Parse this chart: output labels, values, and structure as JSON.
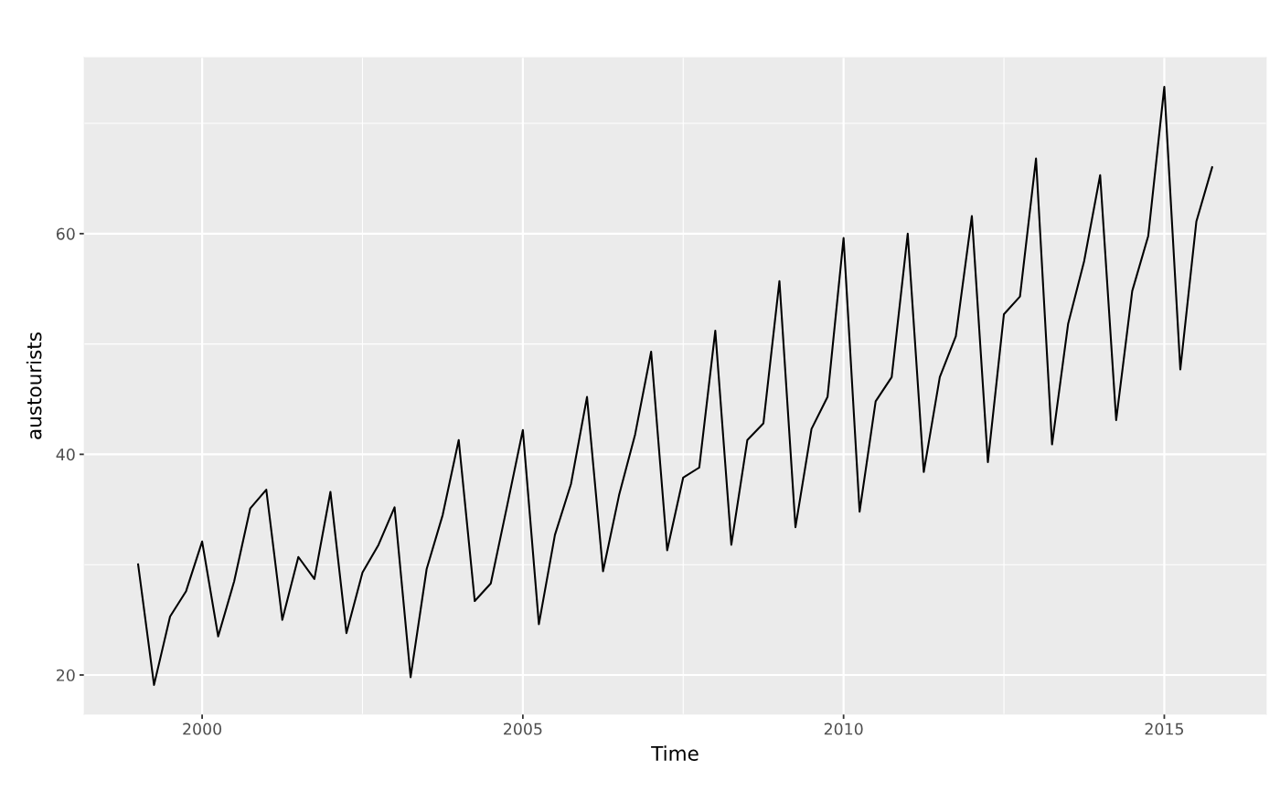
{
  "chart_data": {
    "type": "line",
    "xlabel": "Time",
    "ylabel": "austourists",
    "series": [
      {
        "color": "#000000",
        "x": [
          1999,
          1999.25,
          1999.5,
          1999.75,
          2000,
          2000.25,
          2000.5,
          2000.75,
          2001,
          2001.25,
          2001.5,
          2001.75,
          2002,
          2002.25,
          2002.5,
          2002.75,
          2003,
          2003.25,
          2003.5,
          2003.75,
          2004,
          2004.25,
          2004.5,
          2004.75,
          2005,
          2005.25,
          2005.5,
          2005.75,
          2006,
          2006.25,
          2006.5,
          2006.75,
          2007,
          2007.25,
          2007.5,
          2007.75,
          2008,
          2008.25,
          2008.5,
          2008.75,
          2009,
          2009.25,
          2009.5,
          2009.75,
          2010,
          2010.25,
          2010.5,
          2010.75,
          2011,
          2011.25,
          2011.5,
          2011.75,
          2012,
          2012.25,
          2012.5,
          2012.75,
          2013,
          2013.25,
          2013.5,
          2013.75,
          2014,
          2014.25,
          2014.5,
          2014.75,
          2015,
          2015.25,
          2015.5,
          2015.75
        ],
        "values": [
          30.1,
          19.1,
          25.3,
          27.6,
          32.1,
          23.5,
          28.5,
          35.1,
          36.8,
          25.0,
          30.7,
          28.7,
          36.6,
          23.8,
          29.3,
          31.8,
          35.2,
          19.8,
          29.6,
          34.5,
          41.3,
          26.7,
          28.3,
          35.2,
          42.2,
          24.6,
          32.7,
          37.3,
          45.2,
          29.4,
          36.3,
          41.8,
          49.3,
          31.3,
          37.9,
          38.8,
          51.2,
          31.8,
          41.3,
          42.8,
          55.7,
          33.4,
          42.3,
          45.2,
          59.6,
          34.8,
          44.8,
          47.0,
          60.0,
          38.4,
          47.0,
          50.7,
          61.6,
          39.3,
          52.7,
          54.3,
          66.8,
          40.9,
          51.8,
          57.5,
          65.3,
          43.1,
          54.8,
          59.8,
          73.3,
          47.7,
          61.1,
          66.1
        ]
      }
    ],
    "xlim": [
      1998.16,
      2016.59
    ],
    "xticks": [
      2000,
      2005,
      2010,
      2015
    ],
    "ylim": [
      16.44,
      75.96
    ],
    "yticks": [
      20,
      40,
      60
    ],
    "grid": true
  }
}
